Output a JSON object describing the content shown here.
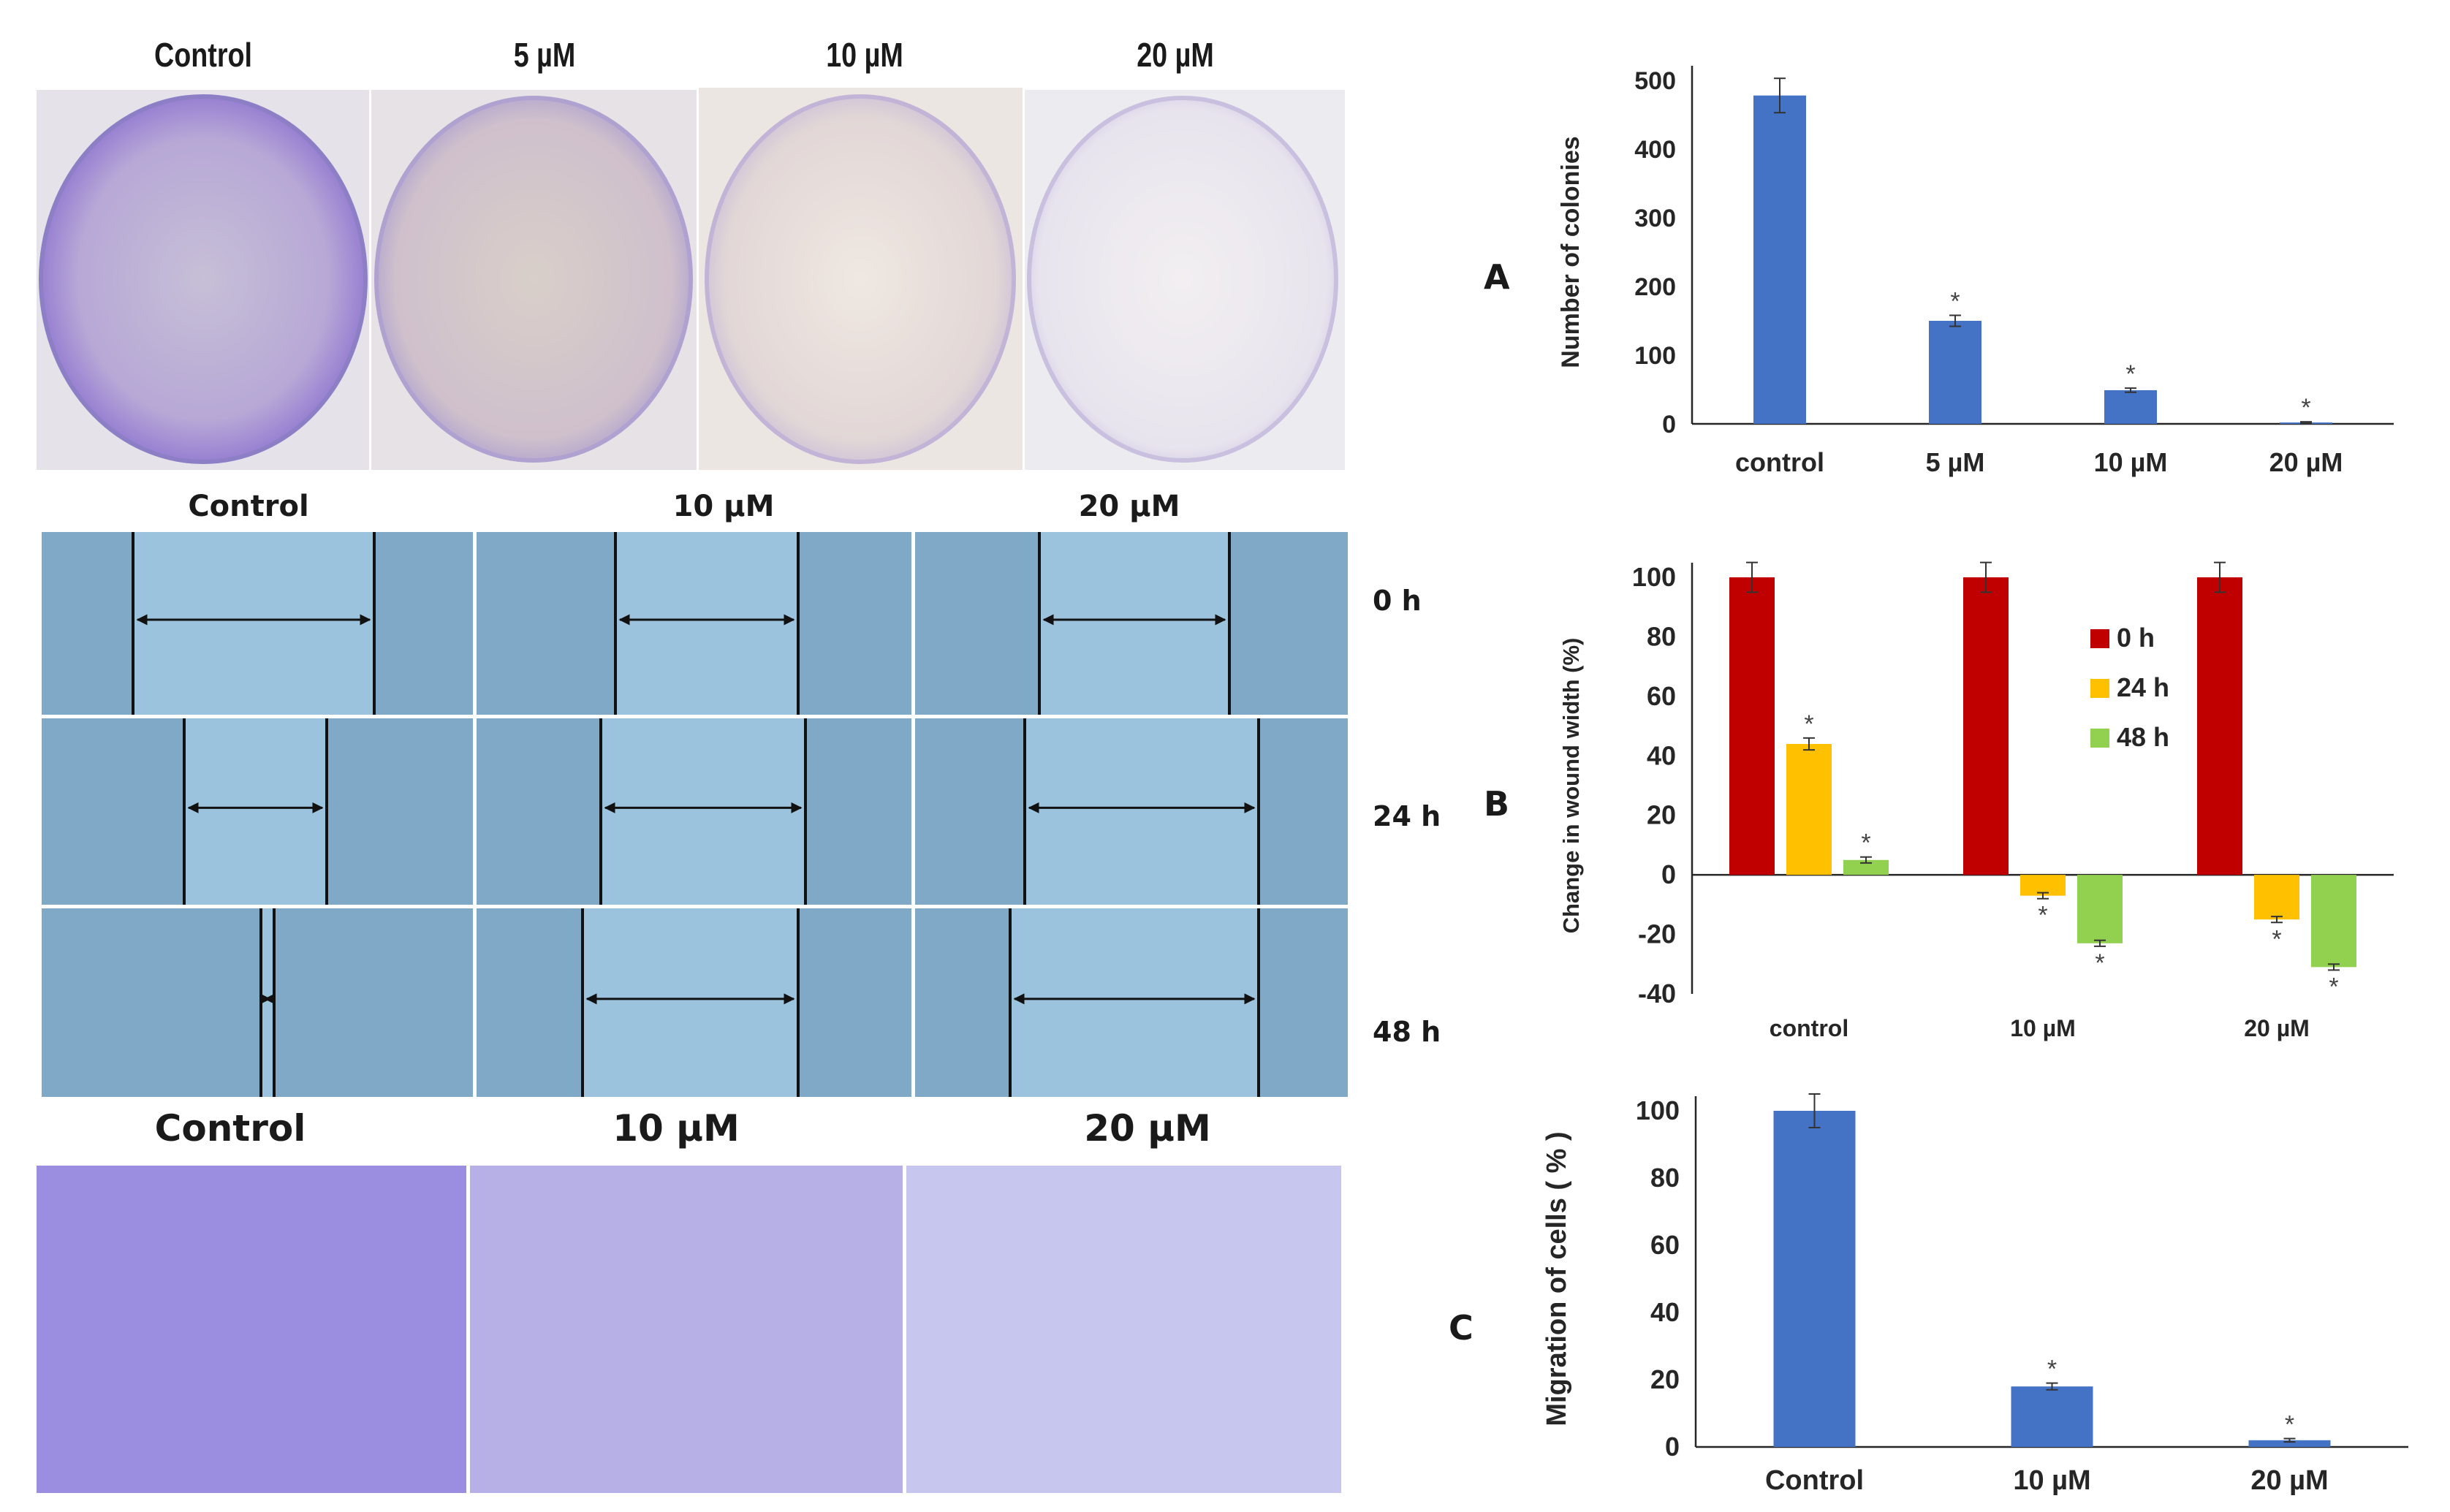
{
  "plate_section": {
    "headers": [
      "Control",
      "5 µM",
      "10 µM",
      "20 µM"
    ]
  },
  "wound_section": {
    "headers": [
      "Control",
      "10 µM",
      "20 µM"
    ],
    "time_labels": [
      "0 h",
      "24 h",
      "48 h"
    ]
  },
  "invasion_section": {
    "headers": [
      "Control",
      "10 µM",
      "20 µM"
    ]
  },
  "panel_labels": {
    "a": "A",
    "b": "B",
    "c": "C"
  },
  "colors": {
    "bar_blue": "#4472C4",
    "red_0h": "#C00000",
    "yellow_24h": "#FFC000",
    "green_48h": "#92D050",
    "wound_bg": "#8fb8d6",
    "crystal_violet": "#6a55c0"
  },
  "chart_data": [
    {
      "type": "bar",
      "panel": "A",
      "categories": [
        "control",
        "5 µM",
        "10 µM",
        "20 µM"
      ],
      "values": [
        478,
        150,
        49,
        2
      ],
      "errors": [
        25,
        8,
        3,
        1
      ],
      "significance": [
        "",
        "*",
        "*",
        "*"
      ],
      "ylabel": "Number of colonies",
      "ylim": [
        0,
        500
      ],
      "yticks": [
        "0",
        "100",
        "200",
        "300",
        "400",
        "500"
      ],
      "series_color": "#4472C4"
    },
    {
      "type": "bar",
      "panel": "B",
      "categories": [
        "control",
        "10 µM",
        "20 µM"
      ],
      "series": [
        {
          "name": "0 h",
          "values": [
            100,
            100,
            100
          ],
          "errors": [
            5,
            5,
            5
          ],
          "significance": [
            "",
            "",
            ""
          ],
          "color": "#C00000"
        },
        {
          "name": "24 h",
          "values": [
            44,
            -7,
            -15
          ],
          "errors": [
            2,
            1,
            1
          ],
          "significance": [
            "*",
            "*",
            "*"
          ],
          "color": "#FFC000"
        },
        {
          "name": "48 h",
          "values": [
            5,
            -23,
            -31
          ],
          "errors": [
            1,
            1,
            1
          ],
          "significance": [
            "*",
            "*",
            "*"
          ],
          "color": "#92D050"
        }
      ],
      "ylabel": "Change in wound width (%)",
      "ylim": [
        -40,
        100
      ],
      "yticks": [
        "-40",
        "-20",
        "0",
        "20",
        "40",
        "60",
        "80",
        "100"
      ],
      "legend": "inside-center"
    },
    {
      "type": "bar",
      "panel": "C",
      "categories": [
        "Control",
        "10 µM",
        "20 µM"
      ],
      "values": [
        100,
        18,
        2
      ],
      "errors": [
        5,
        1,
        0.5
      ],
      "significance": [
        "",
        "*",
        "*"
      ],
      "ylabel": "Migration of cells ( % )",
      "ylim": [
        0,
        100
      ],
      "yticks": [
        "0",
        "20",
        "40",
        "60",
        "80",
        "100"
      ],
      "series_color": "#4472C4"
    }
  ]
}
